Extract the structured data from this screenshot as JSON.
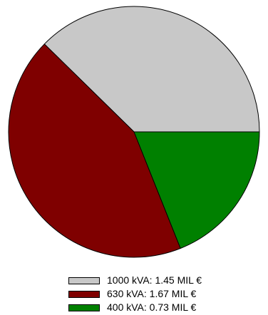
{
  "chart_data": {
    "type": "pie",
    "slices": [
      {
        "label": "1000 kVA: 1.45 MIL €",
        "value": 1.45,
        "color": "#c8c8c8"
      },
      {
        "label": "630 kVA: 1.67 MIL €",
        "value": 1.67,
        "color": "#7f0000"
      },
      {
        "label": "400 kVA: 0.73 MIL €",
        "value": 0.73,
        "color": "#008000"
      }
    ],
    "start_angle_deg": 0,
    "direction": "counterclockwise",
    "legend_position": "bottom"
  }
}
